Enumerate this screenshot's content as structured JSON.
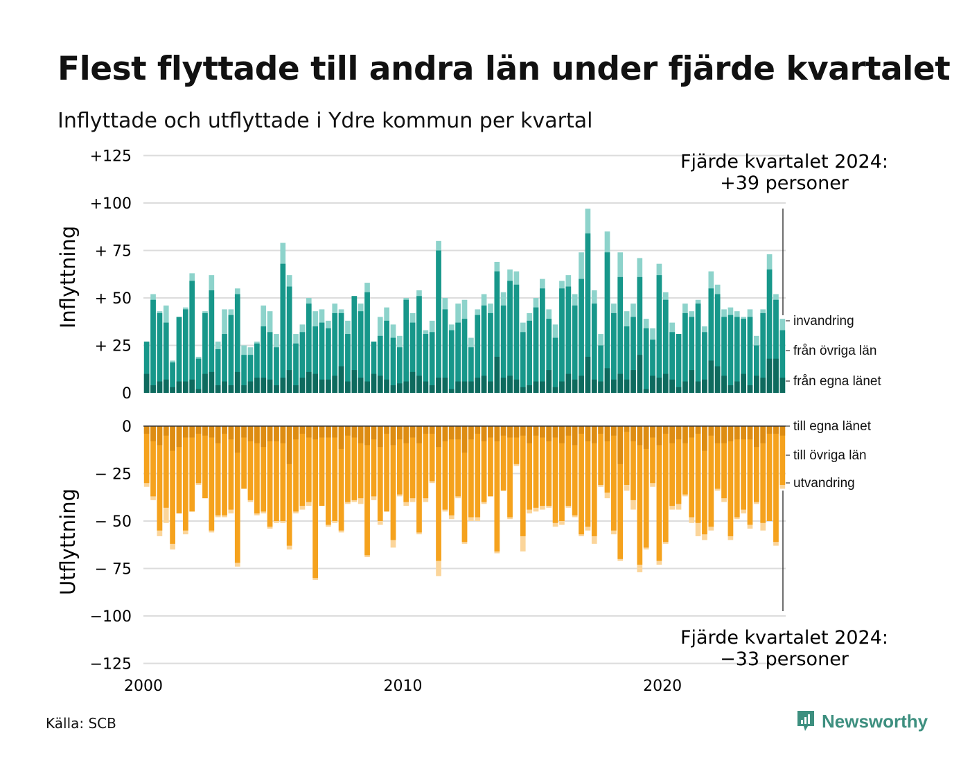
{
  "title": "Flest flyttade till andra län under fjärde kvartalet",
  "subtitle": "Inflyttade och utflyttade i Ydre kommun per kvartal",
  "source": "Källa: SCB",
  "brand": "Newsworthy",
  "colors": {
    "in_egna": "#0e6a5e",
    "in_ovriga": "#17978a",
    "in_inv": "#8dd3cb",
    "ut_egna": "#dd8c12",
    "ut_ovriga": "#f5a21d",
    "ut_utv": "#fbd59a",
    "brand": "#3d8f7f"
  },
  "top_annotation": {
    "line1": "Fjärde kvartalet 2024:",
    "line2": "+39 personer"
  },
  "bottom_annotation": {
    "line1": "Fjärde kvartalet 2024:",
    "line2": "−33 personer"
  },
  "chart_data": {
    "type": "bar",
    "stacked": true,
    "x_start": "2000 Q1",
    "x_ticks": [
      "2000",
      "2010",
      "2020"
    ],
    "y_ticks": [
      "+125",
      "+100",
      "+ 75",
      "+ 50",
      "+ 25",
      "0",
      "0",
      "− 25",
      "− 50",
      "− 75",
      "−100",
      "−125"
    ],
    "ylim": [
      -125,
      125
    ],
    "ylabel_top": "Inflyttning",
    "ylabel_bottom": "Utflyttning",
    "legend_in": [
      "invandring",
      "från övriga län",
      "från egna länet"
    ],
    "legend_out": [
      "till egna länet",
      "till övriga län",
      "utvandring"
    ],
    "in_total": [
      27,
      52,
      43,
      46,
      17,
      40,
      45,
      63,
      19,
      43,
      62,
      27,
      44,
      44,
      55,
      25,
      24,
      27,
      46,
      43,
      31,
      79,
      62,
      31,
      36,
      50,
      43,
      44,
      38,
      47,
      44,
      38,
      51,
      47,
      58,
      27,
      40,
      45,
      36,
      30,
      50,
      42,
      54,
      33,
      38,
      80,
      50,
      36,
      47,
      49,
      29,
      44,
      52,
      47,
      69,
      53,
      65,
      64,
      37,
      42,
      50,
      60,
      44,
      36,
      59,
      62,
      52,
      74,
      97,
      54,
      31,
      85,
      47,
      74,
      43,
      47,
      71,
      39,
      34,
      68,
      53,
      37,
      31,
      47,
      43,
      49,
      35,
      64,
      57,
      44,
      45,
      43,
      40,
      44,
      30,
      44,
      73,
      52,
      39
    ],
    "in_ovriga": [
      27,
      49,
      42,
      37,
      16,
      40,
      44,
      59,
      18,
      42,
      54,
      23,
      31,
      41,
      52,
      20,
      20,
      26,
      35,
      32,
      24,
      68,
      56,
      26,
      32,
      47,
      35,
      37,
      34,
      42,
      42,
      31,
      51,
      43,
      53,
      27,
      30,
      38,
      29,
      24,
      49,
      37,
      51,
      31,
      32,
      75,
      44,
      33,
      37,
      39,
      24,
      41,
      46,
      42,
      64,
      46,
      59,
      57,
      32,
      38,
      45,
      55,
      39,
      29,
      55,
      56,
      46,
      60,
      84,
      47,
      25,
      74,
      42,
      61,
      35,
      40,
      61,
      34,
      28,
      62,
      49,
      32,
      31,
      42,
      40,
      47,
      32,
      55,
      52,
      40,
      41,
      40,
      39,
      40,
      25,
      42,
      65,
      49,
      33
    ],
    "in_egna": [
      10,
      4,
      6,
      7,
      3,
      6,
      6,
      7,
      2,
      10,
      11,
      4,
      6,
      4,
      11,
      4,
      6,
      8,
      8,
      7,
      4,
      8,
      12,
      4,
      8,
      11,
      10,
      7,
      7,
      9,
      14,
      6,
      12,
      8,
      6,
      10,
      9,
      7,
      4,
      5,
      6,
      11,
      9,
      6,
      4,
      8,
      8,
      2,
      6,
      6,
      6,
      8,
      9,
      6,
      19,
      8,
      9,
      7,
      3,
      4,
      6,
      6,
      12,
      3,
      6,
      10,
      7,
      9,
      19,
      7,
      6,
      13,
      7,
      10,
      7,
      12,
      20,
      2,
      9,
      8,
      10,
      7,
      3,
      6,
      12,
      6,
      7,
      17,
      14,
      9,
      4,
      6,
      10,
      4,
      9,
      8,
      18,
      18,
      8
    ],
    "out_total": [
      32,
      39,
      58,
      51,
      65,
      46,
      57,
      45,
      31,
      38,
      56,
      48,
      48,
      46,
      74,
      33,
      40,
      47,
      46,
      54,
      51,
      51,
      65,
      46,
      44,
      42,
      81,
      42,
      53,
      51,
      56,
      41,
      40,
      41,
      69,
      39,
      52,
      45,
      64,
      37,
      42,
      40,
      57,
      40,
      30,
      79,
      45,
      49,
      38,
      62,
      50,
      50,
      41,
      37,
      67,
      34,
      49,
      21,
      66,
      46,
      45,
      44,
      43,
      53,
      52,
      43,
      48,
      58,
      55,
      62,
      32,
      38,
      57,
      71,
      34,
      44,
      77,
      65,
      32,
      73,
      62,
      44,
      44,
      37,
      51,
      58,
      60,
      55,
      34,
      40,
      60,
      49,
      46,
      54,
      41,
      55,
      50,
      63,
      33
    ],
    "out_ovriga": [
      30,
      37,
      55,
      43,
      62,
      46,
      55,
      45,
      30,
      38,
      55,
      47,
      47,
      44,
      72,
      33,
      39,
      46,
      45,
      53,
      50,
      50,
      63,
      45,
      42,
      40,
      80,
      42,
      52,
      50,
      55,
      40,
      39,
      38,
      68,
      37,
      50,
      45,
      60,
      36,
      40,
      38,
      56,
      38,
      29,
      71,
      44,
      47,
      37,
      61,
      48,
      48,
      40,
      37,
      66,
      34,
      48,
      20,
      58,
      44,
      43,
      42,
      42,
      51,
      50,
      42,
      47,
      57,
      53,
      58,
      31,
      35,
      55,
      70,
      31,
      39,
      73,
      64,
      30,
      71,
      61,
      42,
      41,
      36,
      48,
      51,
      57,
      53,
      33,
      38,
      58,
      48,
      44,
      52,
      40,
      51,
      50,
      61,
      31
    ],
    "out_egna": [
      4,
      8,
      10,
      5,
      13,
      11,
      6,
      6,
      4,
      5,
      6,
      9,
      4,
      7,
      14,
      6,
      8,
      9,
      11,
      8,
      8,
      9,
      20,
      7,
      4,
      6,
      7,
      6,
      6,
      6,
      12,
      5,
      6,
      9,
      10,
      7,
      11,
      4,
      10,
      7,
      9,
      6,
      9,
      4,
      4,
      11,
      8,
      7,
      7,
      14,
      7,
      4,
      8,
      6,
      8,
      5,
      6,
      6,
      5,
      9,
      5,
      6,
      8,
      6,
      9,
      5,
      10,
      4,
      8,
      9,
      4,
      8,
      5,
      20,
      3,
      8,
      10,
      12,
      6,
      10,
      4,
      9,
      7,
      9,
      6,
      4,
      13,
      5,
      9,
      9,
      8,
      7,
      7,
      7,
      11,
      9,
      4,
      4,
      5
    ]
  }
}
